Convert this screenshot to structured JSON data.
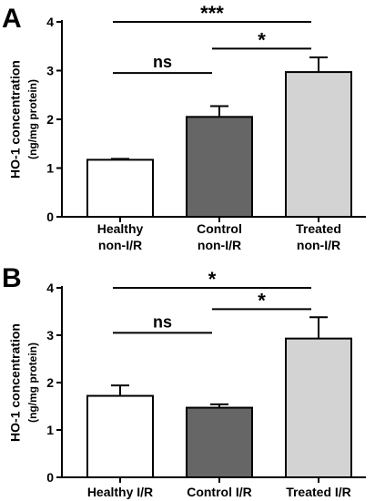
{
  "chart_data": [
    {
      "type": "bar",
      "panel_label": "A",
      "ylabel": "HO-1 concentration",
      "ylabel_unit": "(ng/mg protein)",
      "ylim": [
        0,
        4
      ],
      "yticks": [
        "0",
        "1",
        "2",
        "3",
        "4"
      ],
      "grid": false,
      "categories": [
        {
          "line1": "Healthy",
          "line2": "non-I/R"
        },
        {
          "line1": "Control",
          "line2": "non-I/R"
        },
        {
          "line1": "Treated",
          "line2": "non-I/R"
        }
      ],
      "values": [
        1.17,
        2.05,
        2.97
      ],
      "errors": [
        0.02,
        0.22,
        0.3
      ],
      "colors": [
        "#ffffff",
        "#666666",
        "#d3d3d3"
      ],
      "significance": [
        {
          "from": 0,
          "to": 2,
          "label": "***",
          "y": 4.0
        },
        {
          "from": 1,
          "to": 2,
          "label": "*",
          "y": 3.45
        },
        {
          "from": 0,
          "to": 1,
          "label": "ns",
          "y": 2.95
        }
      ]
    },
    {
      "type": "bar",
      "panel_label": "B",
      "ylabel": "HO-1 concentration",
      "ylabel_unit": "(ng/mg protein)",
      "ylim": [
        0,
        4
      ],
      "yticks": [
        "0",
        "1",
        "2",
        "3",
        "4"
      ],
      "grid": false,
      "categories": [
        {
          "line1": "Healthy I/R",
          "line2": ""
        },
        {
          "line1": "Control I/R",
          "line2": ""
        },
        {
          "line1": "Treated I/R",
          "line2": ""
        }
      ],
      "values": [
        1.72,
        1.47,
        2.93
      ],
      "errors": [
        0.22,
        0.07,
        0.45
      ],
      "colors": [
        "#ffffff",
        "#666666",
        "#d3d3d3"
      ],
      "significance": [
        {
          "from": 0,
          "to": 2,
          "label": "*",
          "y": 4.0
        },
        {
          "from": 1,
          "to": 2,
          "label": "*",
          "y": 3.55
        },
        {
          "from": 0,
          "to": 1,
          "label": "ns",
          "y": 3.05
        }
      ]
    }
  ]
}
